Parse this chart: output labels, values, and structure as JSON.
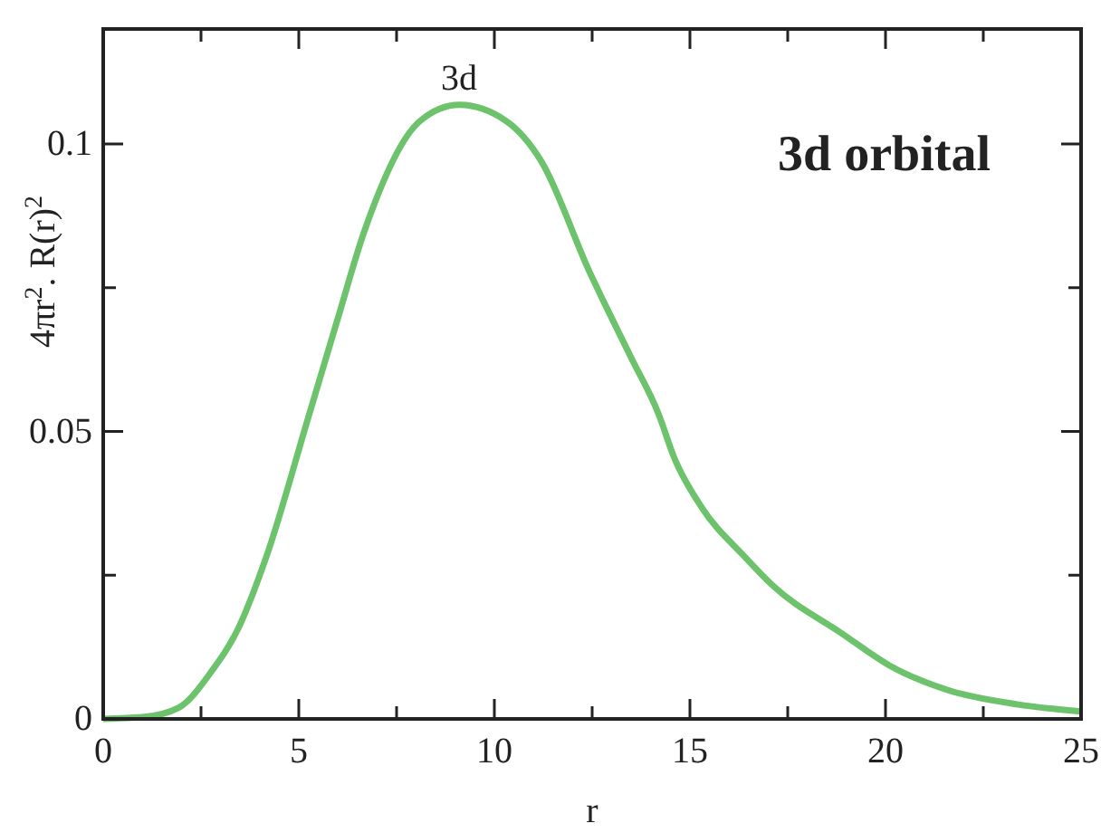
{
  "chart_data": {
    "type": "line",
    "xlabel": "r",
    "ylabel": "4πr$^{2}$. R(r)$^{2}$",
    "annotations": [
      {
        "text": "3d",
        "x": 9.1,
        "y": 0.107
      },
      "3d orbital"
    ],
    "x": [
      0,
      1,
      1.94,
      2.74,
      3.47,
      4.17,
      5.25,
      5.97,
      6.67,
      8.1,
      9.1,
      10.3,
      11.2,
      12.45,
      12.8,
      13.5,
      14.2,
      14.6,
      15.3,
      16.4,
      17.1,
      18.9,
      20.1,
      21.6,
      23.4,
      25
    ],
    "series": [
      {
        "color": "#6cc36c",
        "values": [
          0,
          0.0003,
          0.002,
          0.008,
          0.016,
          0.0282,
          0.0526,
          0.069,
          0.0847,
          0.104,
          0.1068,
          0.104,
          0.097,
          0.0775,
          0.0725,
          0.0628,
          0.053,
          0.0454,
          0.0368,
          0.0282,
          0.0233,
          0.0148,
          0.0093,
          0.005,
          0.0025,
          0.0013
        ]
      }
    ],
    "xlim": [
      0,
      25
    ],
    "xticks": [
      0,
      {
        "value": 2.5,
        "label": null
      },
      5,
      {
        "value": 7.5,
        "label": null
      },
      10,
      {
        "value": 12.5,
        "label": null
      },
      15,
      {
        "value": 17.5,
        "label": null
      },
      20,
      {
        "value": 22.5,
        "label": null
      },
      25
    ],
    "ylim": [
      0,
      0.12
    ],
    "yticks": [
      0,
      {
        "value": 0.025,
        "label": null
      },
      0.05,
      {
        "value": 0.075,
        "label": null
      },
      0.1
    ],
    "grid": false,
    "marker": "none",
    "line_style": "solid"
  }
}
